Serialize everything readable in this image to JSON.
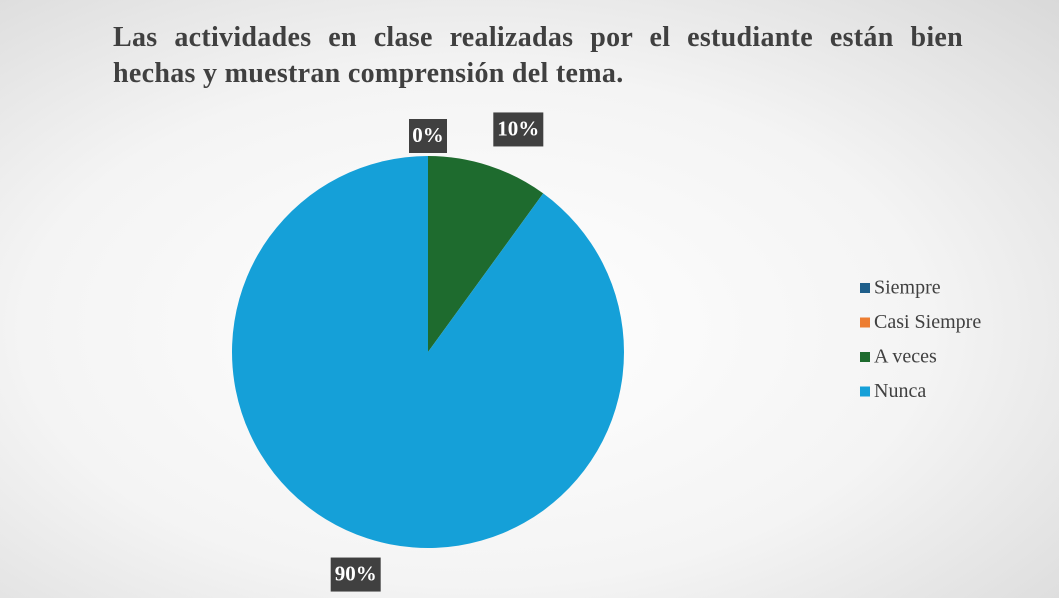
{
  "chart_data": {
    "type": "pie",
    "title": "Las actividades en clase realizadas por el estudiante están bien hechas y muestran comprensión del tema.",
    "categories": [
      "Siempre",
      "Casi Siempre",
      "A veces",
      "Nunca"
    ],
    "values": [
      0,
      0,
      10,
      90
    ],
    "value_labels": [
      "0%",
      null,
      "10%",
      "90%"
    ],
    "colors": [
      "#1f5f8b",
      "#ed7d31",
      "#1e6b2e",
      "#15a0d8"
    ],
    "legend": "right"
  }
}
